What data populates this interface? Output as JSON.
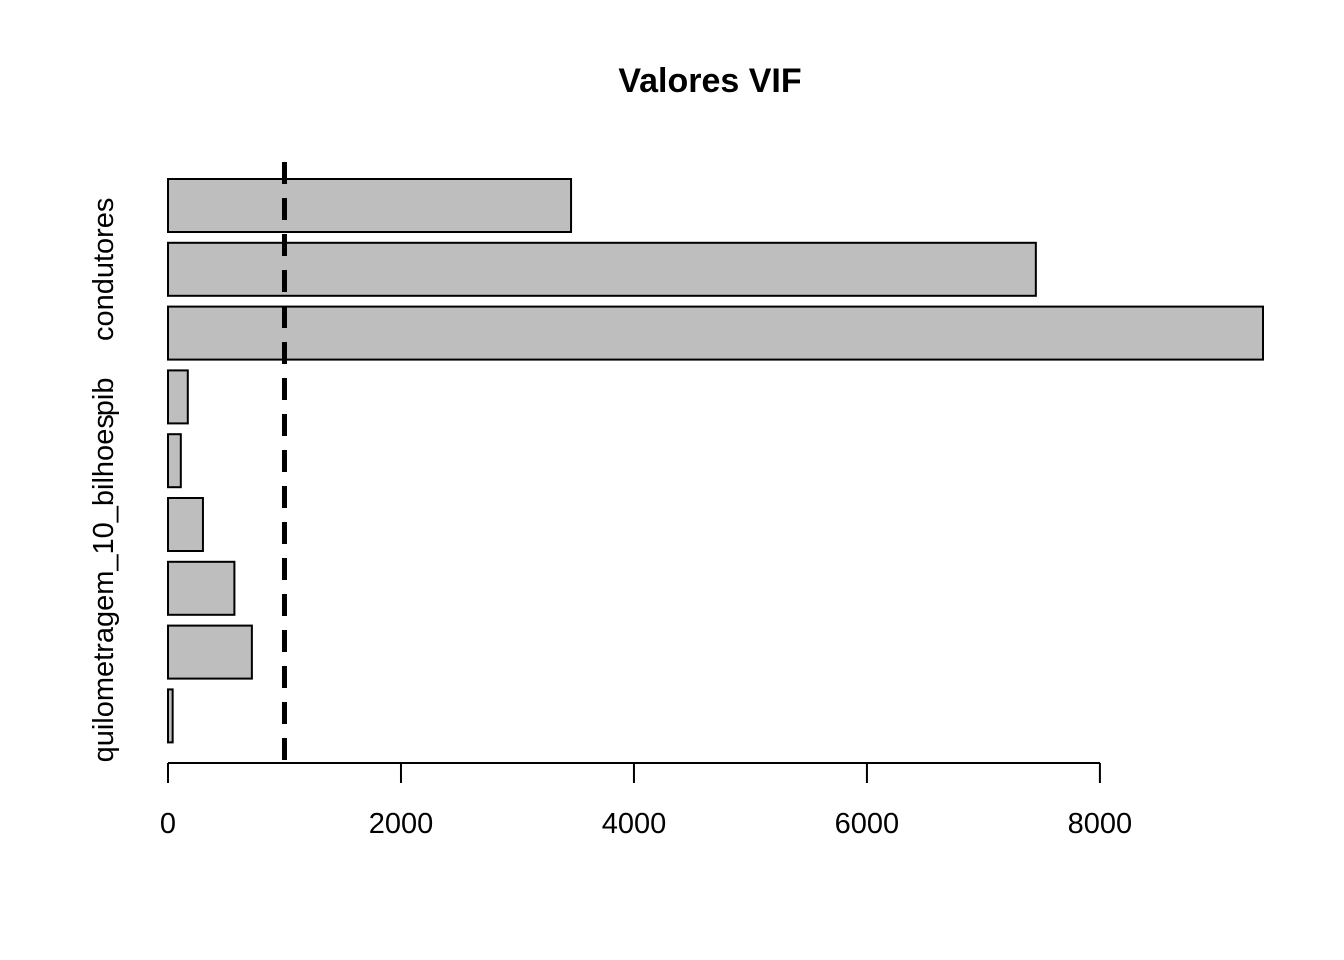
{
  "chart_data": {
    "type": "bar",
    "orientation": "horizontal",
    "title": "Valores VIF",
    "xlabel": "",
    "ylabel": "",
    "xlim": [
      0,
      9400
    ],
    "xticks": [
      0,
      2000,
      4000,
      6000,
      8000
    ],
    "bar_color": "#bebebe",
    "bar_border_color": "#000000",
    "reference_line": {
      "value": 1000,
      "style": "dashed",
      "color": "#000000"
    },
    "categories": [
      "",
      "",
      "quilometragem_10_bilhoes",
      "",
      "",
      "pib",
      "",
      "condutores",
      ""
    ],
    "values": [
      40,
      720,
      570,
      300,
      110,
      170,
      9400,
      7450,
      3460
    ],
    "grid": false
  }
}
